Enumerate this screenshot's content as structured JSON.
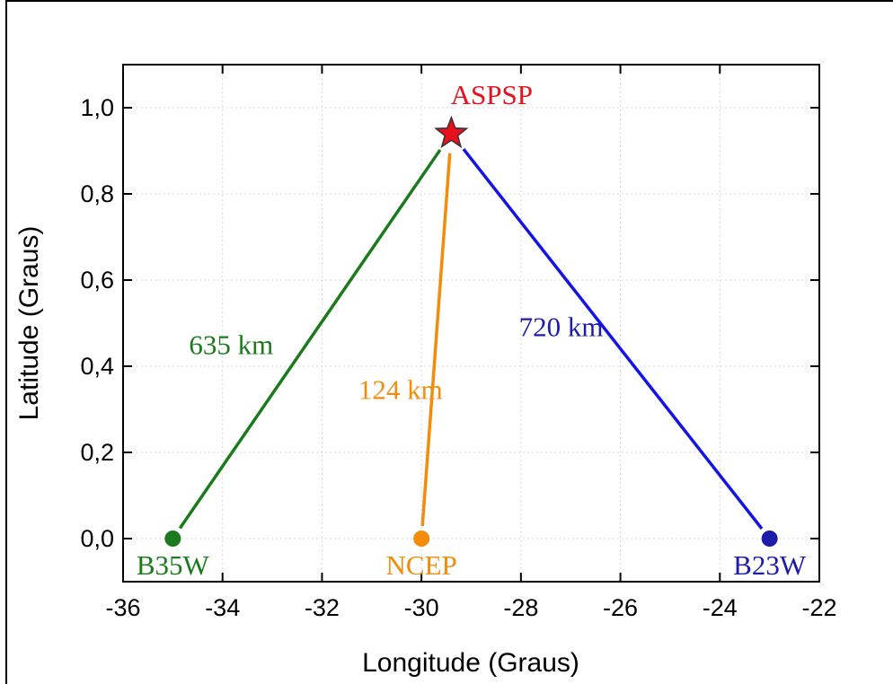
{
  "chart_data": {
    "type": "scatter",
    "xlabel": "Longitude (Graus)",
    "ylabel": "Latitude (Graus)",
    "xlim": [
      -36,
      -22
    ],
    "ylim": [
      -0.1,
      1.1
    ],
    "xticks": [
      -36,
      -34,
      -32,
      -30,
      -28,
      -26,
      -24,
      -22
    ],
    "yticks": [
      {
        "value": 0,
        "label": "0,0"
      },
      {
        "value": 0.2,
        "label": "0,2"
      },
      {
        "value": 0.4,
        "label": "0,4"
      },
      {
        "value": 0.6,
        "label": "0,6"
      },
      {
        "value": 0.8,
        "label": "0,8"
      },
      {
        "value": 1.0,
        "label": "1,0"
      }
    ],
    "grid": true,
    "series": [
      {
        "name": "B35W",
        "color": "#1b7a1b",
        "x": [
          -35
        ],
        "values": [
          0
        ],
        "distance": "635 km"
      },
      {
        "name": "NCEP",
        "color": "#f28c0a",
        "x": [
          -30
        ],
        "values": [
          0
        ],
        "distance": "124 km"
      },
      {
        "name": "B23W",
        "color": "#1c1ca8",
        "line_color": "#1414e6",
        "x": [
          -23
        ],
        "values": [
          0
        ],
        "distance": "720 km"
      },
      {
        "name": "ASPSP",
        "color": "#e8101a",
        "x": [
          -29.4
        ],
        "values": [
          0.94
        ],
        "marker": "star"
      }
    ]
  }
}
